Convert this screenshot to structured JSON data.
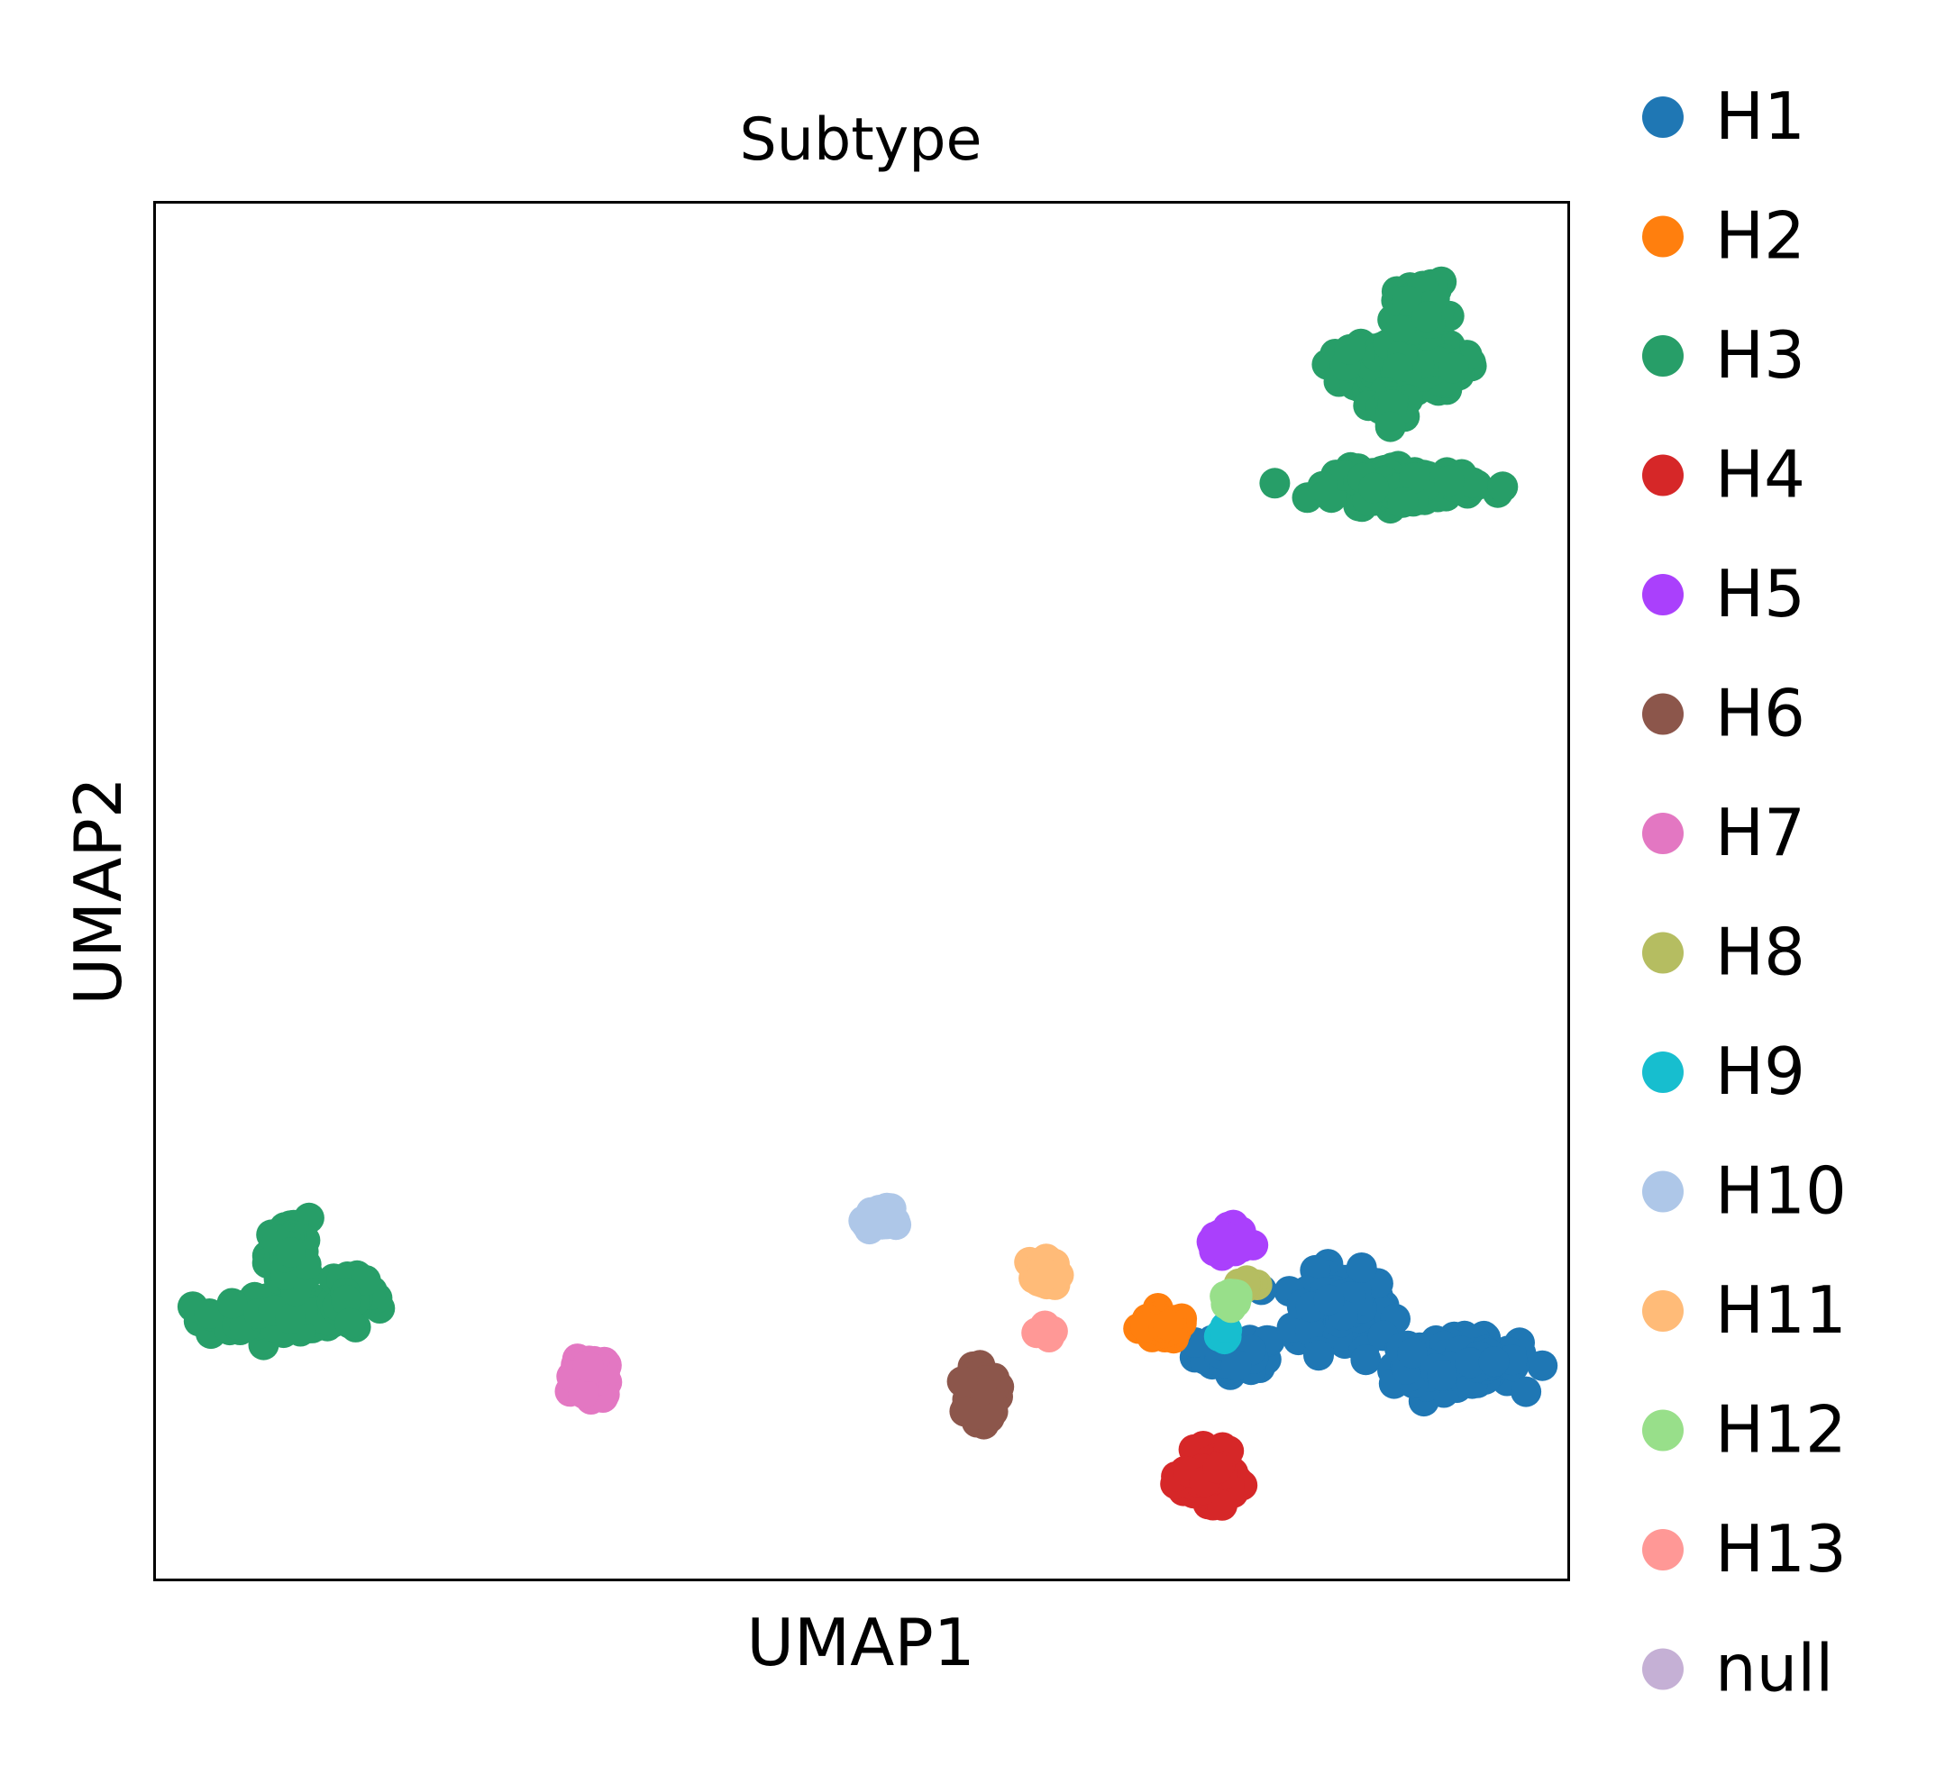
{
  "chart_data": {
    "type": "scatter",
    "title": "Subtype",
    "xlabel": "UMAP1",
    "ylabel": "UMAP2",
    "xlim": [
      0,
      100
    ],
    "ylim": [
      0,
      100
    ],
    "xticks": false,
    "yticks": false,
    "grid": false,
    "legend_position": "right-outside",
    "series": [
      {
        "name": "H1",
        "color": "#1f77b4",
        "clusters": [
          {
            "x": 76.5,
            "y": 16.5,
            "sx": 2.6,
            "sy": 1.1,
            "n": 60
          },
          {
            "x": 84.0,
            "y": 19.5,
            "sx": 3.0,
            "sy": 2.5,
            "n": 140
          },
          {
            "x": 92.0,
            "y": 15.8,
            "sx": 4.0,
            "sy": 1.5,
            "n": 150
          }
        ]
      },
      {
        "name": "H2",
        "color": "#ff7f0e",
        "clusters": [
          {
            "x": 71.3,
            "y": 18.3,
            "sx": 1.5,
            "sy": 0.8,
            "n": 60
          }
        ]
      },
      {
        "name": "H3",
        "color": "#279e68",
        "clusters": [
          {
            "x": 9.0,
            "y": 19.3,
            "sx": 4.0,
            "sy": 1.0,
            "n": 160
          },
          {
            "x": 9.5,
            "y": 23.5,
            "sx": 1.3,
            "sy": 2.5,
            "n": 50
          },
          {
            "x": 14.0,
            "y": 21.0,
            "sx": 1.5,
            "sy": 1.5,
            "n": 40
          },
          {
            "x": 88.5,
            "y": 88.0,
            "sx": 3.5,
            "sy": 1.6,
            "n": 220
          },
          {
            "x": 89.5,
            "y": 92.5,
            "sx": 1.6,
            "sy": 1.5,
            "n": 80
          },
          {
            "x": 87.3,
            "y": 85.0,
            "sx": 0.9,
            "sy": 1.0,
            "n": 30
          },
          {
            "x": 88.5,
            "y": 79.5,
            "sx": 4.5,
            "sy": 1.0,
            "n": 180
          }
        ]
      },
      {
        "name": "H4",
        "color": "#d62728",
        "clusters": [
          {
            "x": 74.5,
            "y": 7.5,
            "sx": 1.6,
            "sy": 1.5,
            "n": 120
          }
        ]
      },
      {
        "name": "H5",
        "color": "#aa40fc",
        "clusters": [
          {
            "x": 75.7,
            "y": 24.5,
            "sx": 1.2,
            "sy": 0.8,
            "n": 60
          }
        ]
      },
      {
        "name": "H6",
        "color": "#8c564b",
        "clusters": [
          {
            "x": 58.6,
            "y": 13.3,
            "sx": 0.9,
            "sy": 1.6,
            "n": 70
          }
        ]
      },
      {
        "name": "H7",
        "color": "#e377c2",
        "clusters": [
          {
            "x": 30.8,
            "y": 14.8,
            "sx": 1.0,
            "sy": 1.3,
            "n": 80
          }
        ]
      },
      {
        "name": "H8",
        "color": "#b5bd61",
        "clusters": [
          {
            "x": 77.0,
            "y": 21.5,
            "sx": 0.6,
            "sy": 0.4,
            "n": 10
          }
        ]
      },
      {
        "name": "H9",
        "color": "#17becf",
        "clusters": [
          {
            "x": 75.5,
            "y": 17.8,
            "sx": 0.5,
            "sy": 0.5,
            "n": 8
          }
        ]
      },
      {
        "name": "H10",
        "color": "#aec7e8",
        "clusters": [
          {
            "x": 51.2,
            "y": 26.2,
            "sx": 0.8,
            "sy": 0.7,
            "n": 40
          }
        ]
      },
      {
        "name": "H11",
        "color": "#ffbb78",
        "clusters": [
          {
            "x": 63.0,
            "y": 22.2,
            "sx": 0.8,
            "sy": 1.0,
            "n": 40
          }
        ]
      },
      {
        "name": "H12",
        "color": "#98df8a",
        "clusters": [
          {
            "x": 76.3,
            "y": 20.5,
            "sx": 0.6,
            "sy": 0.6,
            "n": 15
          }
        ]
      },
      {
        "name": "H13",
        "color": "#ff9896",
        "clusters": [
          {
            "x": 63.3,
            "y": 18.0,
            "sx": 0.7,
            "sy": 0.4,
            "n": 6
          }
        ]
      },
      {
        "name": "null",
        "color": "#c5b0d5",
        "clusters": []
      }
    ]
  }
}
